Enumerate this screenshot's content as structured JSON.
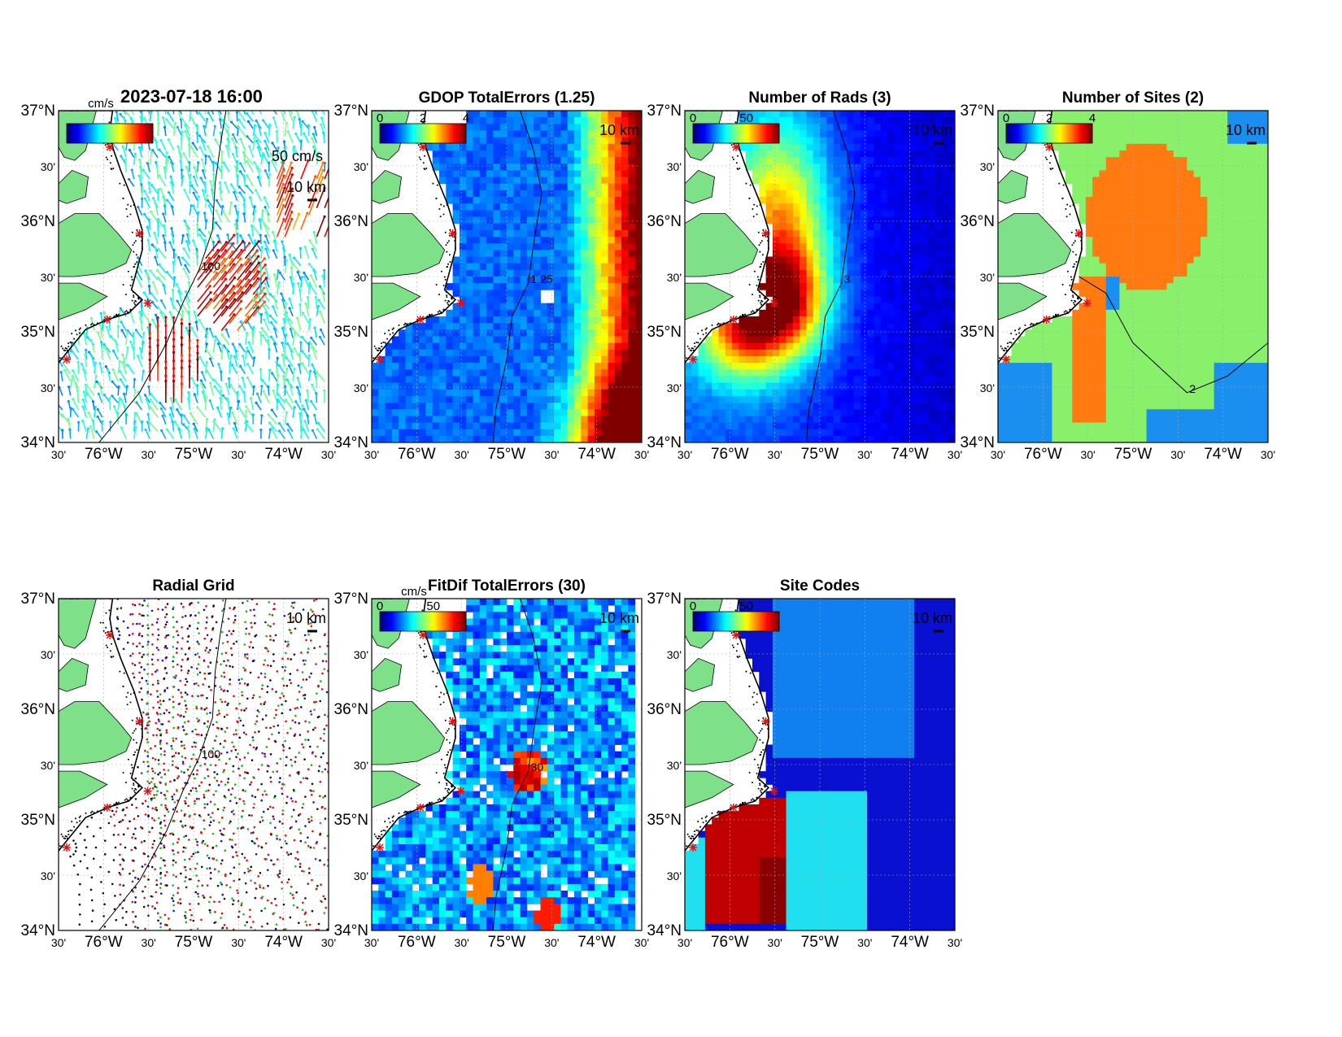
{
  "figure": {
    "timestamp": "2023-07-18 16:00",
    "panels": [
      {
        "id": "currents",
        "title": "",
        "kind": "vectors",
        "colorbar": {
          "unit": "cm/s",
          "ticks": []
        },
        "scale_label": "10 km",
        "vector_scale_label": "50 cm/s",
        "contour_label": "100"
      },
      {
        "id": "gdop",
        "title": "GDOP TotalErrors (1.25)",
        "kind": "field",
        "colorbar": {
          "unit": "",
          "ticks": [
            "0",
            "2",
            "4"
          ]
        },
        "scale_label": "10 km",
        "contour_label": "1.25"
      },
      {
        "id": "nrads",
        "title": "Number of Rads (3)",
        "kind": "field",
        "colorbar": {
          "unit": "",
          "ticks": [
            "0",
            "50"
          ]
        },
        "scale_label": "10 km",
        "contour_label": "3"
      },
      {
        "id": "nsites",
        "title": "Number of Sites (2)",
        "kind": "sites",
        "colorbar": {
          "unit": "",
          "ticks": [
            "0",
            "2",
            "4"
          ]
        },
        "scale_label": "10 km",
        "contour_label": "2"
      },
      {
        "id": "radgrid",
        "title": "Radial Grid",
        "kind": "grid",
        "colorbar": null,
        "scale_label": "10 km",
        "contour_label": "100"
      },
      {
        "id": "fitdif",
        "title": "FitDif TotalErrors (30)",
        "kind": "field",
        "colorbar": {
          "unit": "cm/s",
          "ticks": [
            "0",
            "50"
          ]
        },
        "scale_label": "10 km",
        "contour_label": "30"
      },
      {
        "id": "sitecodes",
        "title": "Site Codes",
        "kind": "codes",
        "colorbar": {
          "unit": "",
          "ticks": [
            "0",
            "50"
          ]
        },
        "scale_label": "10 km",
        "contour_label": ""
      }
    ],
    "axes": {
      "lat_labels": [
        "37°N",
        "30'",
        "36°N",
        "30'",
        "35°N",
        "30'",
        "34°N"
      ],
      "lon_labels": [
        "30'",
        "76°W",
        "30'",
        "75°W",
        "30'",
        "74°W",
        "30'"
      ]
    },
    "colors": {
      "land": "#7fe08a",
      "ocean_bg": "#ffffff",
      "jet_low": "#00008f",
      "jet_high": "#800000",
      "site_marker": "#e01010",
      "grid_sites": [
        "#1010e0",
        "#e01010",
        "#10c010",
        "#e01010",
        "#101010"
      ]
    }
  }
}
